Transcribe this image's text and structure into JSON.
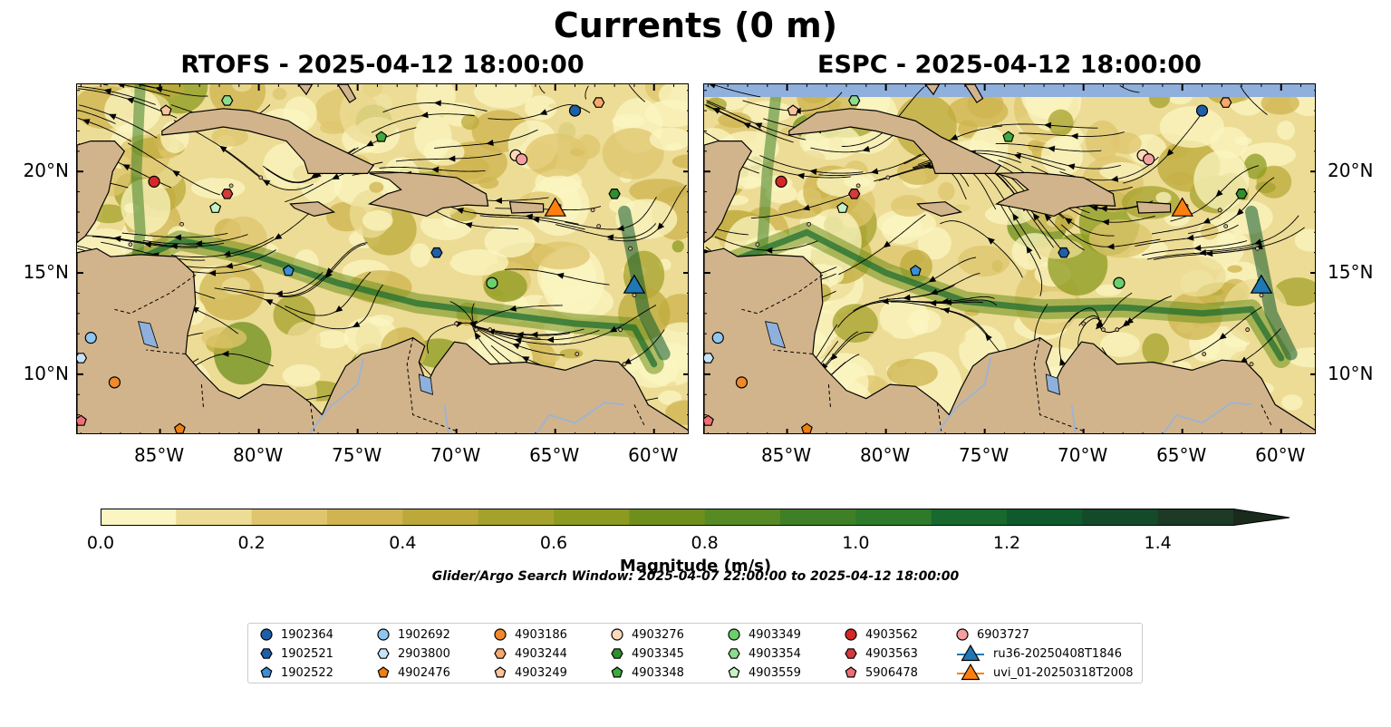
{
  "figure": {
    "suptitle": "Currents (0 m)",
    "search_window": "Glider/Argo Search Window: 2025-04-07 22:00:00 to 2025-04-12 18:00:00"
  },
  "chart_data": [
    {
      "type": "heatmap",
      "title": "RTOFS - 2025-04-12 18:00:00",
      "xlim": [
        -89.2,
        -58.2
      ],
      "ylim": [
        7.0,
        24.3
      ],
      "x_ticks": [
        "85°W",
        "80°W",
        "75°W",
        "70°W",
        "65°W",
        "60°W"
      ],
      "y_ticks": [
        "10°N",
        "15°N",
        "20°N"
      ],
      "colors": {
        "land": "#d2b48c",
        "lakes": "#8fb0dd",
        "no_data": "#8fb0dd"
      }
    },
    {
      "type": "heatmap",
      "title": "ESPC - 2025-04-12 18:00:00",
      "xlim": [
        -89.2,
        -58.2
      ],
      "ylim": [
        7.0,
        24.3
      ],
      "x_ticks": [
        "85°W",
        "80°W",
        "75°W",
        "70°W",
        "65°W",
        "60°W"
      ],
      "y_ticks": [
        "10°N",
        "15°N",
        "20°N"
      ],
      "colors": {
        "land": "#d2b48c",
        "lakes": "#8fb0dd",
        "no_data": "#8fb0dd"
      }
    }
  ],
  "colorbar": {
    "label": "Magnitude (m/s)",
    "min": 0.0,
    "max": 1.5,
    "extend": "max",
    "ticks": [
      "0.0",
      "0.2",
      "0.4",
      "0.6",
      "0.8",
      "1.0",
      "1.2",
      "1.4"
    ],
    "colors": [
      "#fbf5c2",
      "#ecdc95",
      "#dfc56e",
      "#cfb44f",
      "#bca93a",
      "#a5a22c",
      "#8c9b20",
      "#6f8f1d",
      "#568a22",
      "#3f7f25",
      "#2d7a2a",
      "#17692d",
      "#0f5a2c",
      "#144a2a",
      "#1c3a25",
      "#1a2a1c"
    ]
  },
  "platforms": [
    {
      "id": "1902364",
      "marker": "circle",
      "color": "#1f5fa8",
      "lon": -64.0,
      "lat": 23.0
    },
    {
      "id": "1902521",
      "marker": "hexagon",
      "color": "#1f5fa8",
      "lon": -71.0,
      "lat": 16.0
    },
    {
      "id": "1902522",
      "marker": "pentagon",
      "color": "#3a8fd6",
      "lon": -78.5,
      "lat": 15.1
    },
    {
      "id": "1902692",
      "marker": "circle",
      "color": "#8ec6ef",
      "lon": -88.5,
      "lat": 11.8
    },
    {
      "id": "2903800",
      "marker": "hexagon",
      "color": "#c8e3f7",
      "lon": -89.0,
      "lat": 10.8
    },
    {
      "id": "4902476",
      "marker": "pentagon",
      "color": "#f07f0e",
      "lon": -84.0,
      "lat": 7.3
    },
    {
      "id": "4903186",
      "marker": "circle",
      "color": "#f0892a",
      "lon": -87.3,
      "lat": 9.6
    },
    {
      "id": "4903244",
      "marker": "hexagon",
      "color": "#f7a86a",
      "lon": -62.8,
      "lat": 23.4
    },
    {
      "id": "4903249",
      "marker": "pentagon",
      "color": "#fbc49a",
      "lon": -84.7,
      "lat": 23.0
    },
    {
      "id": "4903276",
      "marker": "circle",
      "color": "#fbd9b9",
      "lon": -67.0,
      "lat": 20.8
    },
    {
      "id": "4903345",
      "marker": "hexagon",
      "color": "#2f8f2f",
      "lon": -62.0,
      "lat": 18.9
    },
    {
      "id": "4903348",
      "marker": "pentagon",
      "color": "#3faa3f",
      "lon": -73.8,
      "lat": 21.7
    },
    {
      "id": "4903349",
      "marker": "circle",
      "color": "#6ccf6c",
      "lon": -68.2,
      "lat": 14.5
    },
    {
      "id": "4903354",
      "marker": "hexagon",
      "color": "#8fdc8f",
      "lon": -81.6,
      "lat": 23.5
    },
    {
      "id": "4903559",
      "marker": "pentagon",
      "color": "#c5f2c5",
      "lon": -82.2,
      "lat": 18.2
    },
    {
      "id": "4903562",
      "marker": "circle",
      "color": "#d62728",
      "lon": -85.3,
      "lat": 19.5
    },
    {
      "id": "4903563",
      "marker": "hexagon",
      "color": "#d43a3a",
      "lon": -81.6,
      "lat": 18.9
    },
    {
      "id": "5906478",
      "marker": "pentagon",
      "color": "#ef6e74",
      "lon": -89.0,
      "lat": 7.7
    },
    {
      "id": "6903727",
      "marker": "circle",
      "color": "#f4a0a0",
      "lon": -66.7,
      "lat": 20.6
    },
    {
      "id": "ru36-20250408T1846",
      "marker": "triangle",
      "color": "#1f77b4",
      "lon": -61.0,
      "lat": 14.3
    },
    {
      "id": "uvi_01-20250318T2008",
      "marker": "triangle",
      "color": "#ff7f0e",
      "lon": -65.0,
      "lat": 18.1
    }
  ]
}
